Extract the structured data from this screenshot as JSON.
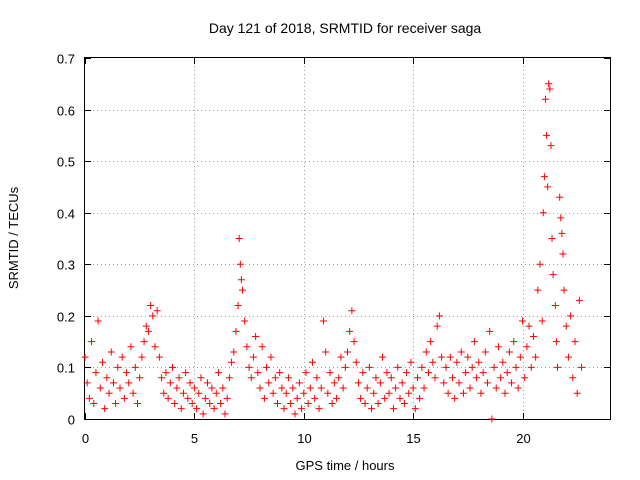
{
  "chart_data": {
    "type": "scatter",
    "title": "Day 121 of 2018, SRMTID for receiver saga",
    "xlabel": "GPS time / hours",
    "ylabel": "SRMTID / TECUs",
    "xlim": [
      0,
      24
    ],
    "ylim": [
      0,
      0.7
    ],
    "xticks": [
      0,
      5,
      10,
      15,
      20
    ],
    "yticks": [
      0,
      0.1,
      0.2,
      0.3,
      0.4,
      0.5,
      0.6,
      0.7
    ],
    "xtick_labels": [
      "0",
      "5",
      "10",
      "15",
      "20"
    ],
    "ytick_labels": [
      "0",
      "0.1",
      "0.2",
      "0.3",
      "0.4",
      "0.5",
      "0.6",
      "0.7"
    ],
    "grid": true,
    "marker": "+",
    "marker_color": "#ff0000",
    "series": [
      {
        "name": "SRMTID",
        "points": [
          [
            0.0,
            0.12
          ],
          [
            0.1,
            0.07
          ],
          [
            0.2,
            0.04
          ],
          [
            0.3,
            0.15
          ],
          [
            0.4,
            0.03
          ],
          [
            0.5,
            0.09
          ],
          [
            0.6,
            0.19
          ],
          [
            0.7,
            0.06
          ],
          [
            0.8,
            0.11
          ],
          [
            0.9,
            0.02
          ],
          [
            1.0,
            0.08
          ],
          [
            1.1,
            0.05
          ],
          [
            1.2,
            0.13
          ],
          [
            1.3,
            0.07
          ],
          [
            1.4,
            0.03
          ],
          [
            1.5,
            0.1
          ],
          [
            1.6,
            0.06
          ],
          [
            1.7,
            0.12
          ],
          [
            1.8,
            0.04
          ],
          [
            1.9,
            0.09
          ],
          [
            2.0,
            0.07
          ],
          [
            2.1,
            0.14
          ],
          [
            2.2,
            0.05
          ],
          [
            2.3,
            0.1
          ],
          [
            2.4,
            0.03
          ],
          [
            2.5,
            0.08
          ],
          [
            2.6,
            0.12
          ],
          [
            2.7,
            0.15
          ],
          [
            2.8,
            0.18
          ],
          [
            2.9,
            0.17
          ],
          [
            3.0,
            0.22
          ],
          [
            3.1,
            0.2
          ],
          [
            3.2,
            0.14
          ],
          [
            3.3,
            0.21
          ],
          [
            3.4,
            0.12
          ],
          [
            3.5,
            0.08
          ],
          [
            3.6,
            0.05
          ],
          [
            3.7,
            0.09
          ],
          [
            3.8,
            0.04
          ],
          [
            3.9,
            0.07
          ],
          [
            4.0,
            0.1
          ],
          [
            4.1,
            0.03
          ],
          [
            4.2,
            0.06
          ],
          [
            4.3,
            0.08
          ],
          [
            4.4,
            0.02
          ],
          [
            4.5,
            0.05
          ],
          [
            4.6,
            0.09
          ],
          [
            4.7,
            0.04
          ],
          [
            4.8,
            0.07
          ],
          [
            4.9,
            0.03
          ],
          [
            5.0,
            0.06
          ],
          [
            5.1,
            0.02
          ],
          [
            5.2,
            0.05
          ],
          [
            5.3,
            0.08
          ],
          [
            5.4,
            0.01
          ],
          [
            5.5,
            0.04
          ],
          [
            5.6,
            0.07
          ],
          [
            5.7,
            0.03
          ],
          [
            5.8,
            0.06
          ],
          [
            5.9,
            0.02
          ],
          [
            6.0,
            0.05
          ],
          [
            6.1,
            0.09
          ],
          [
            6.2,
            0.03
          ],
          [
            6.3,
            0.06
          ],
          [
            6.4,
            0.01
          ],
          [
            6.5,
            0.04
          ],
          [
            6.6,
            0.08
          ],
          [
            6.7,
            0.11
          ],
          [
            6.8,
            0.13
          ],
          [
            6.9,
            0.17
          ],
          [
            7.0,
            0.22
          ],
          [
            7.05,
            0.35
          ],
          [
            7.1,
            0.3
          ],
          [
            7.15,
            0.27
          ],
          [
            7.2,
            0.25
          ],
          [
            7.3,
            0.19
          ],
          [
            7.4,
            0.14
          ],
          [
            7.5,
            0.1
          ],
          [
            7.6,
            0.08
          ],
          [
            7.7,
            0.12
          ],
          [
            7.8,
            0.16
          ],
          [
            7.9,
            0.09
          ],
          [
            8.0,
            0.06
          ],
          [
            8.1,
            0.14
          ],
          [
            8.2,
            0.04
          ],
          [
            8.3,
            0.1
          ],
          [
            8.4,
            0.07
          ],
          [
            8.5,
            0.12
          ],
          [
            8.6,
            0.05
          ],
          [
            8.7,
            0.08
          ],
          [
            8.8,
            0.03
          ],
          [
            8.9,
            0.09
          ],
          [
            9.0,
            0.06
          ],
          [
            9.1,
            0.02
          ],
          [
            9.2,
            0.05
          ],
          [
            9.3,
            0.08
          ],
          [
            9.4,
            0.03
          ],
          [
            9.5,
            0.06
          ],
          [
            9.6,
            0.01
          ],
          [
            9.7,
            0.04
          ],
          [
            9.8,
            0.07
          ],
          [
            9.9,
            0.02
          ],
          [
            10.0,
            0.05
          ],
          [
            10.1,
            0.09
          ],
          [
            10.2,
            0.03
          ],
          [
            10.3,
            0.06
          ],
          [
            10.4,
            0.11
          ],
          [
            10.5,
            0.04
          ],
          [
            10.6,
            0.08
          ],
          [
            10.7,
            0.02
          ],
          [
            10.8,
            0.06
          ],
          [
            10.9,
            0.19
          ],
          [
            11.0,
            0.13
          ],
          [
            11.1,
            0.05
          ],
          [
            11.2,
            0.09
          ],
          [
            11.3,
            0.03
          ],
          [
            11.4,
            0.07
          ],
          [
            11.5,
            0.04
          ],
          [
            11.6,
            0.08
          ],
          [
            11.7,
            0.12
          ],
          [
            11.8,
            0.06
          ],
          [
            11.9,
            0.1
          ],
          [
            12.0,
            0.13
          ],
          [
            12.1,
            0.17
          ],
          [
            12.2,
            0.21
          ],
          [
            12.3,
            0.15
          ],
          [
            12.4,
            0.11
          ],
          [
            12.5,
            0.07
          ],
          [
            12.6,
            0.04
          ],
          [
            12.7,
            0.09
          ],
          [
            12.8,
            0.03
          ],
          [
            12.9,
            0.06
          ],
          [
            13.0,
            0.1
          ],
          [
            13.1,
            0.02
          ],
          [
            13.2,
            0.05
          ],
          [
            13.3,
            0.08
          ],
          [
            13.4,
            0.03
          ],
          [
            13.5,
            0.07
          ],
          [
            13.6,
            0.12
          ],
          [
            13.7,
            0.04
          ],
          [
            13.8,
            0.09
          ],
          [
            13.9,
            0.05
          ],
          [
            14.0,
            0.08
          ],
          [
            14.1,
            0.02
          ],
          [
            14.2,
            0.06
          ],
          [
            14.3,
            0.1
          ],
          [
            14.4,
            0.04
          ],
          [
            14.5,
            0.07
          ],
          [
            14.6,
            0.03
          ],
          [
            14.7,
            0.09
          ],
          [
            14.8,
            0.05
          ],
          [
            14.9,
            0.11
          ],
          [
            15.0,
            0.06
          ],
          [
            15.1,
            0.02
          ],
          [
            15.2,
            0.08
          ],
          [
            15.3,
            0.04
          ],
          [
            15.4,
            0.1
          ],
          [
            15.5,
            0.06
          ],
          [
            15.6,
            0.13
          ],
          [
            15.7,
            0.09
          ],
          [
            15.8,
            0.15
          ],
          [
            15.9,
            0.11
          ],
          [
            16.0,
            0.08
          ],
          [
            16.1,
            0.18
          ],
          [
            16.2,
            0.2
          ],
          [
            16.3,
            0.12
          ],
          [
            16.4,
            0.07
          ],
          [
            16.5,
            0.1
          ],
          [
            16.6,
            0.05
          ],
          [
            16.7,
            0.12
          ],
          [
            16.8,
            0.08
          ],
          [
            16.9,
            0.04
          ],
          [
            17.0,
            0.11
          ],
          [
            17.1,
            0.07
          ],
          [
            17.2,
            0.13
          ],
          [
            17.3,
            0.05
          ],
          [
            17.4,
            0.09
          ],
          [
            17.5,
            0.12
          ],
          [
            17.6,
            0.06
          ],
          [
            17.7,
            0.1
          ],
          [
            17.8,
            0.15
          ],
          [
            17.9,
            0.08
          ],
          [
            18.0,
            0.11
          ],
          [
            18.1,
            0.05
          ],
          [
            18.2,
            0.09
          ],
          [
            18.3,
            0.13
          ],
          [
            18.4,
            0.07
          ],
          [
            18.5,
            0.17
          ],
          [
            18.6,
            0.0
          ],
          [
            18.7,
            0.1
          ],
          [
            18.8,
            0.06
          ],
          [
            18.9,
            0.14
          ],
          [
            19.0,
            0.08
          ],
          [
            19.1,
            0.11
          ],
          [
            19.2,
            0.05
          ],
          [
            19.3,
            0.09
          ],
          [
            19.4,
            0.13
          ],
          [
            19.5,
            0.07
          ],
          [
            19.6,
            0.15
          ],
          [
            19.7,
            0.1
          ],
          [
            19.8,
            0.06
          ],
          [
            19.9,
            0.12
          ],
          [
            20.0,
            0.19
          ],
          [
            20.1,
            0.08
          ],
          [
            20.2,
            0.14
          ],
          [
            20.3,
            0.18
          ],
          [
            20.4,
            0.1
          ],
          [
            20.5,
            0.16
          ],
          [
            20.6,
            0.12
          ],
          [
            20.7,
            0.25
          ],
          [
            20.8,
            0.3
          ],
          [
            20.9,
            0.19
          ],
          [
            20.95,
            0.4
          ],
          [
            21.0,
            0.47
          ],
          [
            21.05,
            0.62
          ],
          [
            21.1,
            0.55
          ],
          [
            21.15,
            0.45
          ],
          [
            21.2,
            0.65
          ],
          [
            21.25,
            0.64
          ],
          [
            21.3,
            0.53
          ],
          [
            21.35,
            0.35
          ],
          [
            21.4,
            0.28
          ],
          [
            21.5,
            0.22
          ],
          [
            21.55,
            0.15
          ],
          [
            21.6,
            0.1
          ],
          [
            21.7,
            0.43
          ],
          [
            21.75,
            0.39
          ],
          [
            21.8,
            0.36
          ],
          [
            21.85,
            0.32
          ],
          [
            21.9,
            0.25
          ],
          [
            22.0,
            0.18
          ],
          [
            22.1,
            0.12
          ],
          [
            22.2,
            0.2
          ],
          [
            22.3,
            0.08
          ],
          [
            22.4,
            0.15
          ],
          [
            22.5,
            0.05
          ],
          [
            22.6,
            0.23
          ],
          [
            22.7,
            0.1
          ]
        ]
      }
    ]
  }
}
